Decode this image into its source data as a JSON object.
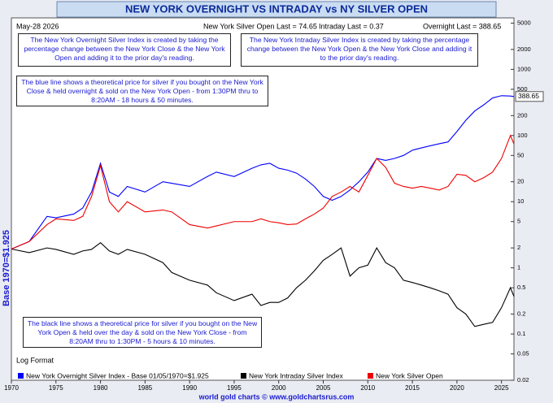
{
  "chart_data": {
    "type": "line",
    "title": "NEW YORK OVERNIGHT VS INTRADAY vs NY SILVER OPEN",
    "date": "May-28  2026",
    "header_open": "New York Silver Open Last = 74.65",
    "header_intraday": "Intraday Last = 0.37",
    "header_overnight": "Overnight Last = 388.65",
    "note_overnight": "The New York Overnight Silver Index is created by taking the percentage change between the New York Close & the New York Open and adding it to the prior day's reading.",
    "note_intraday": "The New York Intraday Silver Index is created by taking the percentage change between the New York Open & the New York Close and adding it to the prior day's reading.",
    "note_blue": "The blue line shows a theoretical price for silver if you bought on the New York Close & held overnight & sold on the New York Open - from 1:30PM thru to 8:20AM - 18 hours & 50 minutes.",
    "note_black": "The black line shows a theoretical price for silver if you bought on the New York Open & held over the day & sold on the New York Close - from 8:20AM thru to 1:30PM - 5 hours & 10 minutes.",
    "format_label": "Log Format",
    "ylabel": "Base 1970=$1.925",
    "end_label": "388.65",
    "footer": "world gold charts © www.goldchartsrus.com",
    "log_scale": true,
    "grid": false,
    "x": [
      1970,
      1972,
      1974,
      1975,
      1977,
      1978,
      1979,
      1980,
      1981,
      1982,
      1983,
      1985,
      1987,
      1988,
      1990,
      1992,
      1993,
      1995,
      1997,
      1998,
      1999,
      2000,
      2001,
      2002,
      2003,
      2004,
      2005,
      2006,
      2007,
      2008,
      2009,
      2010,
      2011,
      2012,
      2013,
      2014,
      2015,
      2016,
      2017,
      2018,
      2019,
      2020,
      2021,
      2022,
      2023,
      2024,
      2025,
      2026,
      2026.4
    ],
    "series": [
      {
        "name": "New York Overnight Silver Index - Base 01/05/1970=$1.925",
        "color": "#0000ff",
        "values": [
          1.925,
          2.5,
          6,
          5.7,
          6.5,
          8,
          14,
          38,
          14,
          12,
          17,
          14,
          20,
          19,
          17,
          24,
          28,
          24,
          32,
          36,
          38,
          32,
          30,
          27,
          22,
          17,
          12,
          10.5,
          12,
          15,
          20,
          28,
          45,
          42,
          45,
          50,
          60,
          65,
          70,
          75,
          80,
          115,
          170,
          235,
          290,
          370,
          400,
          395,
          388.65
        ]
      },
      {
        "name": "New York Intraday Silver Index",
        "color": "#000000",
        "values": [
          1.925,
          1.7,
          2,
          1.9,
          1.6,
          1.8,
          1.9,
          2.4,
          1.8,
          1.6,
          1.9,
          1.6,
          1.2,
          0.85,
          0.65,
          0.55,
          0.42,
          0.32,
          0.4,
          0.27,
          0.3,
          0.3,
          0.35,
          0.5,
          0.65,
          0.9,
          1.3,
          1.6,
          2,
          0.75,
          1.0,
          1.1,
          2,
          1.2,
          1.0,
          0.65,
          0.6,
          0.55,
          0.5,
          0.45,
          0.4,
          0.25,
          0.2,
          0.13,
          0.14,
          0.15,
          0.25,
          0.5,
          0.37
        ]
      },
      {
        "name": "New York Silver Open",
        "color": "#ee0000",
        "values": [
          1.925,
          2.5,
          4.5,
          5.5,
          5.2,
          6,
          12,
          35,
          10,
          7,
          10,
          7,
          7.5,
          7,
          4.5,
          4,
          4.3,
          5,
          5,
          5.5,
          5,
          4.8,
          4.5,
          4.6,
          5.5,
          6.5,
          8,
          12,
          14,
          17,
          14,
          25,
          45,
          33,
          19,
          17,
          16,
          17,
          16,
          15,
          17,
          26,
          25,
          20,
          23,
          28,
          45,
          100,
          74.65
        ]
      }
    ],
    "xlim": [
      1970,
      2026.4
    ],
    "xticks": [
      1970,
      1975,
      1980,
      1985,
      1990,
      1995,
      2000,
      2005,
      2010,
      2015,
      2020,
      2025
    ],
    "ylim": [
      0.02,
      6000
    ],
    "yticks": [
      0.02,
      0.05,
      0.1,
      0.2,
      0.5,
      1,
      2,
      5,
      10,
      20,
      50,
      100,
      200,
      500,
      1000,
      2000,
      5000
    ]
  }
}
